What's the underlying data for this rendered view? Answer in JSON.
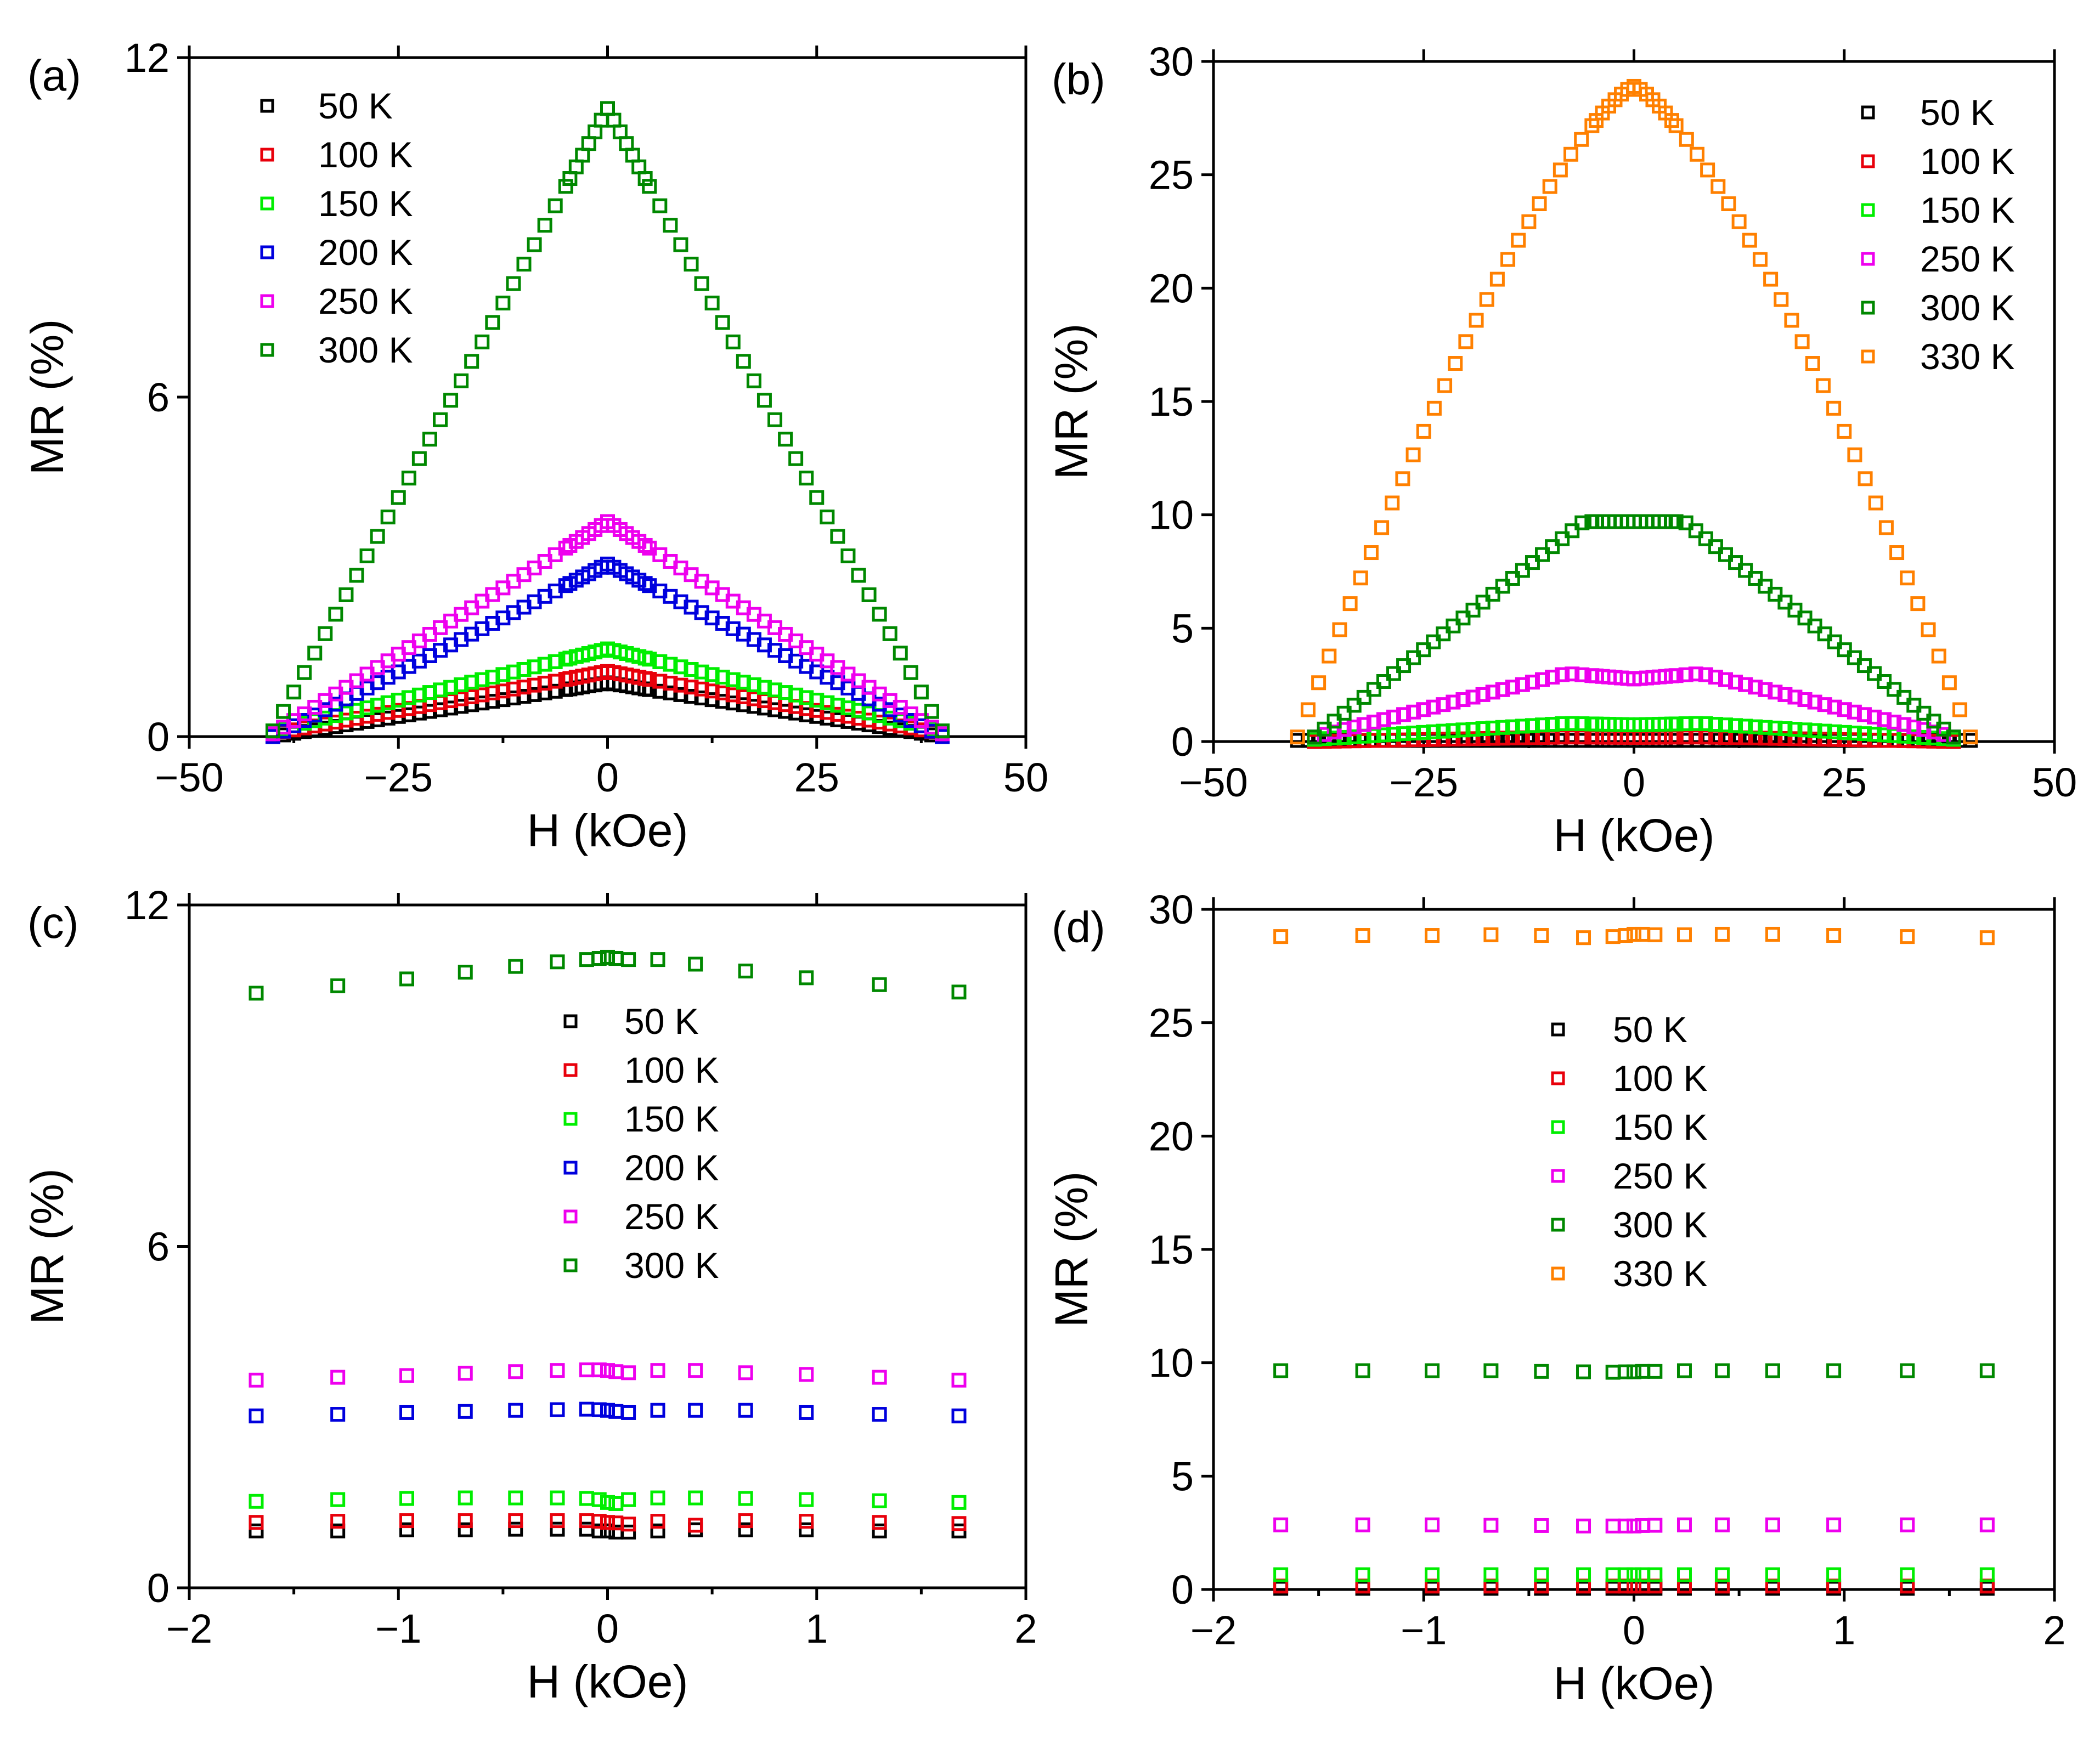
{
  "chart_data": [
    {
      "panel_label": "(a)",
      "type": "scatter",
      "xlabel": "H (kOe)",
      "ylabel": "MR (%)",
      "xlim": [
        -50,
        50
      ],
      "ylim": [
        0,
        12
      ],
      "xticks": [
        -50,
        -25,
        0,
        25,
        50
      ],
      "xtick_labels": [
        "−50",
        "−25",
        "0",
        "25",
        "50"
      ],
      "yticks": [
        0,
        6,
        12
      ],
      "ytick_labels": [
        "0",
        "6",
        "12"
      ],
      "legend_position": "top-left",
      "series": [
        {
          "name": "50 K",
          "color": "#000000",
          "shape": "peak",
          "peak": 0.95,
          "base": 0.0,
          "width": 40
        },
        {
          "name": "100 K",
          "color": "#e8000b",
          "shape": "peak",
          "peak": 1.15,
          "base": 0.05,
          "width": 40
        },
        {
          "name": "150 K",
          "color": "#00ee00",
          "shape": "peak",
          "peak": 1.55,
          "base": 0.1,
          "width": 40
        },
        {
          "name": "200 K",
          "color": "#0000dd",
          "shape": "peak",
          "peak": 3.05,
          "base": 0.0,
          "width": 40
        },
        {
          "name": "250 K",
          "color": "#ee00ee",
          "shape": "peak",
          "peak": 3.8,
          "base": 0.05,
          "width": 40
        },
        {
          "name": "300 K",
          "color": "#008800",
          "shape": "peak",
          "peak": 11.1,
          "base": 0.1,
          "width": 40
        }
      ]
    },
    {
      "panel_label": "(b)",
      "type": "scatter",
      "xlabel": "H (kOe)",
      "ylabel": "MR (%)",
      "xlim": [
        -50,
        50
      ],
      "ylim": [
        0,
        30
      ],
      "xticks": [
        -50,
        -25,
        0,
        25,
        50
      ],
      "xtick_labels": [
        "−50",
        "−25",
        "0",
        "25",
        "50"
      ],
      "yticks": [
        0,
        5,
        10,
        15,
        20,
        25,
        30
      ],
      "ytick_labels": [
        "0",
        "5",
        "10",
        "15",
        "20",
        "25",
        "30"
      ],
      "legend_position": "top-right",
      "series": [
        {
          "name": "50 K",
          "color": "#000000",
          "shape": "flat",
          "peak": 0.05,
          "base": 0.0,
          "width": 40
        },
        {
          "name": "100 K",
          "color": "#e8000b",
          "shape": "bump",
          "peak": 0.2,
          "base": 0.0,
          "width": 38
        },
        {
          "name": "150 K",
          "color": "#00ee00",
          "shape": "bump",
          "peak": 0.8,
          "base": 0.1,
          "width": 38
        },
        {
          "name": "250 K",
          "color": "#ee00ee",
          "shape": "bump",
          "peak": 3.0,
          "base": 0.2,
          "width": 38
        },
        {
          "name": "300 K",
          "color": "#008800",
          "shape": "plateau",
          "peak": 9.7,
          "base": 0.2,
          "width": 38
        },
        {
          "name": "330 K",
          "color": "#ff8000",
          "shape": "dome",
          "peak": 28.9,
          "base": 0.2,
          "width": 40
        }
      ]
    },
    {
      "panel_label": "(c)",
      "type": "scatter",
      "xlabel": "H (kOe)",
      "ylabel": "MR (%)",
      "xlim": [
        -2,
        2
      ],
      "ylim": [
        0,
        12
      ],
      "xticks": [
        -2,
        -1,
        0,
        1,
        2
      ],
      "xtick_labels": [
        "−2",
        "−1",
        "0",
        "1",
        "2"
      ],
      "yticks": [
        0,
        6,
        12
      ],
      "ytick_labels": [
        "0",
        "6",
        "12"
      ],
      "legend_position": "center",
      "x_points": [
        -1.68,
        -1.29,
        -0.96,
        -0.68,
        -0.44,
        -0.24,
        -0.1,
        -0.04,
        0.0,
        0.04,
        0.1,
        0.24,
        0.42,
        0.66,
        0.95,
        1.3,
        1.68
      ],
      "series": [
        {
          "name": "50 K",
          "color": "#000000",
          "values": [
            1.0,
            1.0,
            1.02,
            1.02,
            1.03,
            1.03,
            1.03,
            1.0,
            1.0,
            0.98,
            0.98,
            1.0,
            1.02,
            1.02,
            1.02,
            1.0,
            1.0
          ]
        },
        {
          "name": "100 K",
          "color": "#e8000b",
          "values": [
            1.15,
            1.17,
            1.18,
            1.18,
            1.18,
            1.18,
            1.18,
            1.17,
            1.15,
            1.14,
            1.12,
            1.17,
            1.1,
            1.18,
            1.17,
            1.15,
            1.13
          ]
        },
        {
          "name": "150 K",
          "color": "#00ee00",
          "values": [
            1.52,
            1.55,
            1.57,
            1.58,
            1.58,
            1.58,
            1.57,
            1.55,
            1.5,
            1.48,
            1.55,
            1.58,
            1.58,
            1.57,
            1.55,
            1.53,
            1.5
          ]
        },
        {
          "name": "200 K",
          "color": "#0000dd",
          "values": [
            3.02,
            3.05,
            3.08,
            3.1,
            3.12,
            3.13,
            3.14,
            3.13,
            3.12,
            3.1,
            3.08,
            3.12,
            3.12,
            3.12,
            3.08,
            3.05,
            3.02
          ]
        },
        {
          "name": "250 K",
          "color": "#ee00ee",
          "values": [
            3.65,
            3.7,
            3.73,
            3.77,
            3.8,
            3.82,
            3.83,
            3.83,
            3.82,
            3.8,
            3.78,
            3.82,
            3.82,
            3.78,
            3.75,
            3.7,
            3.65
          ]
        },
        {
          "name": "300 K",
          "color": "#008800",
          "values": [
            10.45,
            10.58,
            10.7,
            10.82,
            10.92,
            11.0,
            11.04,
            11.06,
            11.08,
            11.06,
            11.04,
            11.04,
            10.96,
            10.84,
            10.72,
            10.6,
            10.47
          ]
        }
      ]
    },
    {
      "panel_label": "(d)",
      "type": "scatter",
      "xlabel": "H (kOe)",
      "ylabel": "MR (%)",
      "xlim": [
        -2,
        2
      ],
      "ylim": [
        0,
        30
      ],
      "xticks": [
        -2,
        -1,
        0,
        1,
        2
      ],
      "xtick_labels": [
        "−2",
        "−1",
        "0",
        "1",
        "2"
      ],
      "yticks": [
        0,
        5,
        10,
        15,
        20,
        25,
        30
      ],
      "ytick_labels": [
        "0",
        "5",
        "10",
        "15",
        "20",
        "25",
        "30"
      ],
      "legend_position": "center",
      "x_points": [
        -1.68,
        -1.29,
        -0.96,
        -0.68,
        -0.44,
        -0.24,
        -0.1,
        -0.04,
        0.0,
        0.04,
        0.1,
        0.24,
        0.42,
        0.66,
        0.95,
        1.3,
        1.68
      ],
      "series": [
        {
          "name": "50 K",
          "color": "#000000",
          "values": [
            0.05,
            0.05,
            0.05,
            0.05,
            0.05,
            0.05,
            0.05,
            0.05,
            0.05,
            0.05,
            0.05,
            0.05,
            0.05,
            0.05,
            0.05,
            0.05,
            0.05
          ]
        },
        {
          "name": "100 K",
          "color": "#e8000b",
          "values": [
            0.15,
            0.15,
            0.15,
            0.15,
            0.15,
            0.15,
            0.15,
            0.15,
            0.15,
            0.15,
            0.15,
            0.15,
            0.15,
            0.15,
            0.15,
            0.15,
            0.15
          ]
        },
        {
          "name": "150 K",
          "color": "#00ee00",
          "values": [
            0.65,
            0.65,
            0.65,
            0.65,
            0.65,
            0.65,
            0.65,
            0.65,
            0.65,
            0.65,
            0.65,
            0.65,
            0.65,
            0.65,
            0.65,
            0.65,
            0.65
          ]
        },
        {
          "name": "250 K",
          "color": "#ee00ee",
          "values": [
            2.85,
            2.85,
            2.85,
            2.83,
            2.82,
            2.8,
            2.8,
            2.8,
            2.8,
            2.82,
            2.83,
            2.85,
            2.85,
            2.85,
            2.85,
            2.85,
            2.85
          ]
        },
        {
          "name": "300 K",
          "color": "#008800",
          "values": [
            9.65,
            9.65,
            9.65,
            9.65,
            9.62,
            9.6,
            9.58,
            9.6,
            9.6,
            9.62,
            9.62,
            9.65,
            9.65,
            9.65,
            9.65,
            9.65,
            9.65
          ]
        },
        {
          "name": "330 K",
          "color": "#ff8000",
          "values": [
            28.8,
            28.85,
            28.85,
            28.88,
            28.85,
            28.75,
            28.8,
            28.85,
            28.9,
            28.9,
            28.88,
            28.88,
            28.9,
            28.9,
            28.85,
            28.8,
            28.75
          ]
        }
      ]
    }
  ]
}
